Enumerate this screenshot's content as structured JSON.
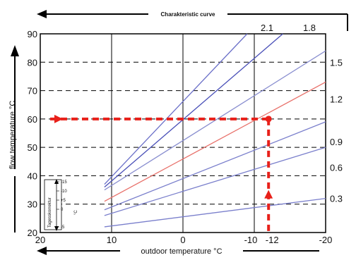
{
  "chart_data": {
    "type": "line",
    "title": "Charakteristic curve",
    "xlabel": "outdoor temperature °C",
    "ylabel": "flow temperature °C",
    "xlim": [
      20,
      -20
    ],
    "ylim": [
      20,
      90
    ],
    "x_ticks": [
      "20",
      "10",
      "0",
      "-10",
      "-12",
      "-20"
    ],
    "y_ticks": [
      "20",
      "30",
      "40",
      "50",
      "60",
      "70",
      "80",
      "90"
    ],
    "curve_labels": [
      "2.1",
      "1.8",
      "1.5",
      "1.2",
      "0.9",
      "0.6",
      "0.3"
    ],
    "series": [
      {
        "name": "2.1",
        "x": [
          11,
          -9
        ],
        "y": [
          37,
          90
        ],
        "color": "#6a6fc8"
      },
      {
        "name": "1.8",
        "x": [
          11,
          -14
        ],
        "y": [
          36,
          90
        ],
        "color": "#4a50b8"
      },
      {
        "name": "1.5",
        "x": [
          11,
          -20
        ],
        "y": [
          35,
          84
        ],
        "color": "#8a8fd0"
      },
      {
        "name": "1.2",
        "x": [
          11,
          -20
        ],
        "y": [
          31,
          73
        ],
        "color": "#e8706a"
      },
      {
        "name": "0.9",
        "x": [
          11,
          -20
        ],
        "y": [
          28,
          59
        ],
        "color": "#7a7fcc"
      },
      {
        "name": "0.6",
        "x": [
          11,
          -20
        ],
        "y": [
          26,
          50
        ],
        "color": "#7a7fcc"
      },
      {
        "name": "0.3",
        "x": [
          11,
          -20
        ],
        "y": [
          22,
          32
        ],
        "color": "#7a7fcc"
      }
    ],
    "example": {
      "outdoor": -12,
      "flow": 60,
      "color": "#e8201a"
    },
    "inset": {
      "title": "Tagesskorrektur",
      "ticks": [
        "-15",
        "-10",
        "+5",
        "0",
        "-5"
      ],
      "unit": "°C"
    },
    "grid": true
  }
}
